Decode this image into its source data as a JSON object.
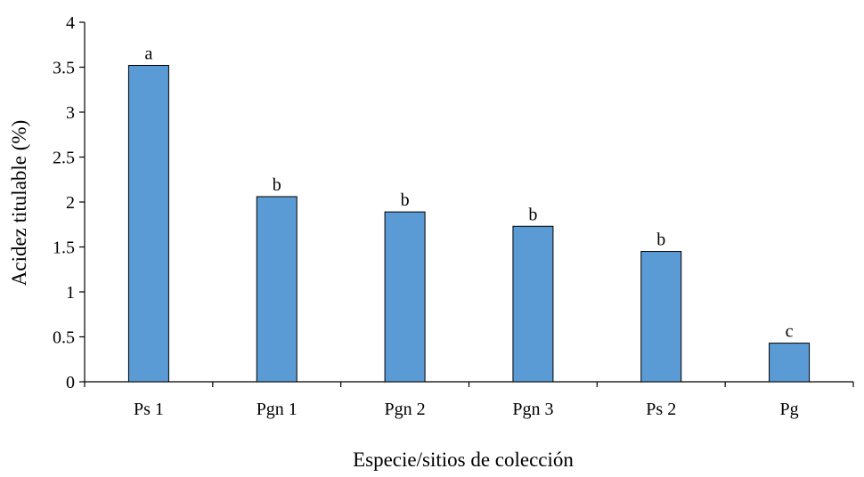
{
  "chart_data": {
    "type": "bar",
    "title": "",
    "xlabel": "Especie/sitios de colección",
    "ylabel": "Acidez titulable (%)",
    "ylim": [
      0,
      4
    ],
    "yticks": [
      "0",
      "0.5",
      "1",
      "1.5",
      "2",
      "2.5",
      "3",
      "3.5",
      "4"
    ],
    "categories": [
      "Ps 1",
      "Pgn 1",
      "Pgn 2",
      "Pgn 3",
      "Ps 2",
      "Pg"
    ],
    "values": [
      3.52,
      2.06,
      1.89,
      1.73,
      1.45,
      0.43
    ],
    "significance_letters": [
      "a",
      "b",
      "b",
      "b",
      "b",
      "c"
    ],
    "grid": false,
    "legend": "none",
    "bar_color": "#5B9BD5",
    "bar_edge_color": "#000000"
  }
}
